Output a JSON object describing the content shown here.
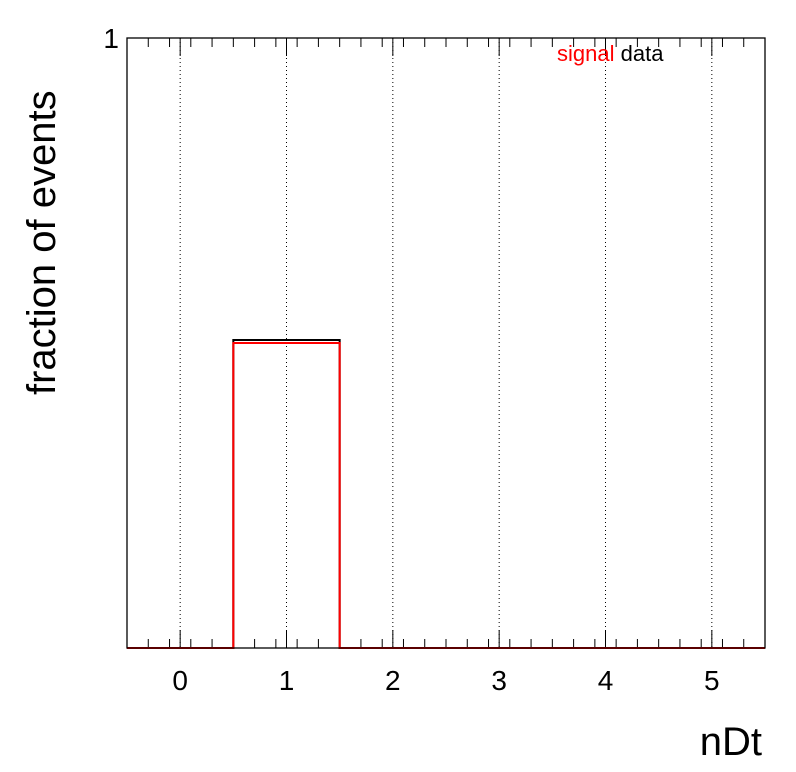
{
  "chart_data": {
    "type": "bar",
    "title": "",
    "xlabel": "nDt",
    "ylabel": "fraction of events",
    "xlim": [
      -0.5,
      5.5
    ],
    "ylim": [
      0,
      1
    ],
    "x_ticks": [
      0,
      1,
      2,
      3,
      4,
      5
    ],
    "x_tick_labels": [
      "0",
      "1",
      "2",
      "3",
      "4",
      "5"
    ],
    "y_ticks": [
      1
    ],
    "y_tick_labels": [
      "1"
    ],
    "grid": "vertical dotted",
    "legend_position": "top-right",
    "bins": [
      0,
      1,
      2,
      3,
      4,
      5
    ],
    "series": [
      {
        "name": "signal",
        "color": "#ff0000",
        "values": [
          0,
          0.5,
          0,
          0,
          0,
          0
        ]
      },
      {
        "name": "data",
        "color": "#000000",
        "values": [
          0,
          0.505,
          0,
          0,
          0,
          0
        ]
      }
    ]
  }
}
